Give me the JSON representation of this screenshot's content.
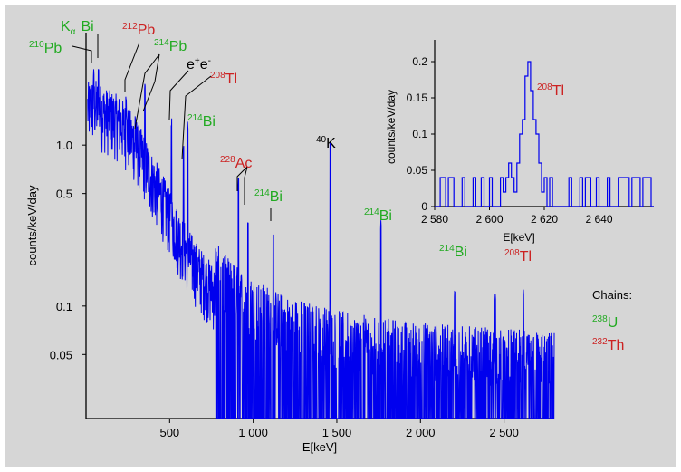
{
  "chart_data": {
    "type": "line",
    "main": {
      "xlabel": "E[keV]",
      "ylabel": "counts/keV/day",
      "xlim": [
        0,
        2800
      ],
      "ylim": [
        0.02,
        5
      ],
      "yscale": "log",
      "xticks": [
        500,
        1000,
        1500,
        2000,
        2500
      ],
      "xtick_labels": [
        "500",
        "1 000",
        "1 500",
        "2 000",
        "2 500"
      ],
      "yticks": [
        0.05,
        0.1,
        0.5,
        1.0
      ],
      "ytick_labels": [
        "0.05",
        "0.1",
        "0.5",
        "1.0"
      ],
      "line_color": "#0000ee",
      "continuum": [
        [
          10,
          1.7
        ],
        [
          50,
          1.8
        ],
        [
          100,
          1.6
        ],
        [
          150,
          1.5
        ],
        [
          200,
          1.4
        ],
        [
          250,
          1.2
        ],
        [
          300,
          1.0
        ],
        [
          350,
          0.8
        ],
        [
          400,
          0.6
        ],
        [
          450,
          0.48
        ],
        [
          500,
          0.36
        ],
        [
          550,
          0.28
        ],
        [
          600,
          0.22
        ],
        [
          650,
          0.18
        ],
        [
          700,
          0.15
        ],
        [
          750,
          0.13
        ],
        [
          800,
          0.11
        ],
        [
          900,
          0.085
        ],
        [
          1000,
          0.07
        ],
        [
          1200,
          0.055
        ],
        [
          1500,
          0.045
        ],
        [
          1800,
          0.04
        ],
        [
          2100,
          0.037
        ],
        [
          2400,
          0.035
        ],
        [
          2800,
          0.033
        ]
      ],
      "peaks": [
        {
          "e": 46,
          "value": 3.0
        },
        {
          "e": 75,
          "value": 3.1
        },
        {
          "e": 239,
          "value": 2.2
        },
        {
          "e": 295,
          "value": 1.6
        },
        {
          "e": 352,
          "value": 2.5
        },
        {
          "e": 511,
          "value": 1.5
        },
        {
          "e": 583,
          "value": 1.0
        },
        {
          "e": 609,
          "value": 1.45
        },
        {
          "e": 911,
          "value": 0.65
        },
        {
          "e": 969,
          "value": 0.35
        },
        {
          "e": 1120,
          "value": 0.3
        },
        {
          "e": 1461,
          "value": 1.15
        },
        {
          "e": 1764,
          "value": 0.35
        },
        {
          "e": 2204,
          "value": 0.13
        },
        {
          "e": 2448,
          "value": 0.12
        },
        {
          "e": 2615,
          "value": 0.13
        }
      ]
    },
    "inset": {
      "type": "line",
      "xlabel": "E[keV]",
      "ylabel": "counts/keV/day",
      "xlim": [
        2580,
        2660
      ],
      "ylim": [
        0,
        0.23
      ],
      "xticks": [
        2580,
        2600,
        2620,
        2640
      ],
      "xtick_labels": [
        "2 580",
        "2 600",
        "2 620",
        "2 640"
      ],
      "yticks": [
        0,
        0.05,
        0.1,
        0.15,
        0.2
      ],
      "ytick_labels": [
        "0",
        "0.05",
        "0.1",
        "0.15",
        "0.2"
      ],
      "x": [
        2581,
        2582,
        2584,
        2585,
        2587,
        2590,
        2591,
        2594,
        2595,
        2597,
        2598,
        2600,
        2601,
        2604,
        2605,
        2606,
        2607,
        2608,
        2609,
        2610,
        2611,
        2612,
        2613,
        2614,
        2615,
        2616,
        2617,
        2618,
        2619,
        2620,
        2621,
        2622,
        2623,
        2629,
        2630,
        2633,
        2634,
        2635,
        2637,
        2639,
        2640,
        2643,
        2644,
        2647,
        2651,
        2652,
        2655,
        2656,
        2659
      ],
      "y": [
        0,
        0.04,
        0,
        0.04,
        0,
        0.04,
        0,
        0.04,
        0,
        0.04,
        0,
        0.04,
        0,
        0.04,
        0.02,
        0.04,
        0.06,
        0.04,
        0.02,
        0.06,
        0.1,
        0.12,
        0.18,
        0.2,
        0.16,
        0.12,
        0.1,
        0.06,
        0.02,
        0.04,
        0,
        0.04,
        0,
        0.04,
        0,
        0.04,
        0,
        0.04,
        0,
        0.04,
        0,
        0.04,
        0,
        0.04,
        0,
        0.04,
        0,
        0.04,
        0
      ]
    }
  },
  "labels": {
    "ka_k": "K",
    "ka_alpha": "α",
    "ka_bi": "Bi",
    "pb210_mass": "210",
    "pb210_el": "Pb",
    "pb212_mass": "212",
    "pb212_el": "Pb",
    "pb214_mass": "214",
    "pb214_el": "Pb",
    "ee_e1": "e",
    "ee_plus": "+",
    "ee_e2": "e",
    "ee_minus": "-",
    "tl208a_mass": "208",
    "tl208a_el": "Tl",
    "bi214a_mass": "214",
    "bi214a_el": "Bi",
    "ac228_mass": "228",
    "ac228_el": "Ac",
    "k40_mass": "40",
    "k40_el": "K",
    "bi214b_mass": "214",
    "bi214b_el": "Bi",
    "bi214c_mass": "214",
    "bi214c_el": "Bi",
    "bi214d_mass": "214",
    "bi214d_el": "Bi",
    "tl208b_mass": "208",
    "tl208b_el": "Tl",
    "inset_tl_mass": "208",
    "inset_tl_el": "Tl"
  },
  "legend": {
    "title": "Chains:",
    "u_mass": "238",
    "u_el": "U",
    "th_mass": "232",
    "th_el": "Th"
  },
  "colors": {
    "background": "#d6d6d6",
    "spectrum": "#0000ee",
    "uranium_chain": "#22aa22",
    "thorium_chain": "#cc2222",
    "other": "#000000"
  }
}
